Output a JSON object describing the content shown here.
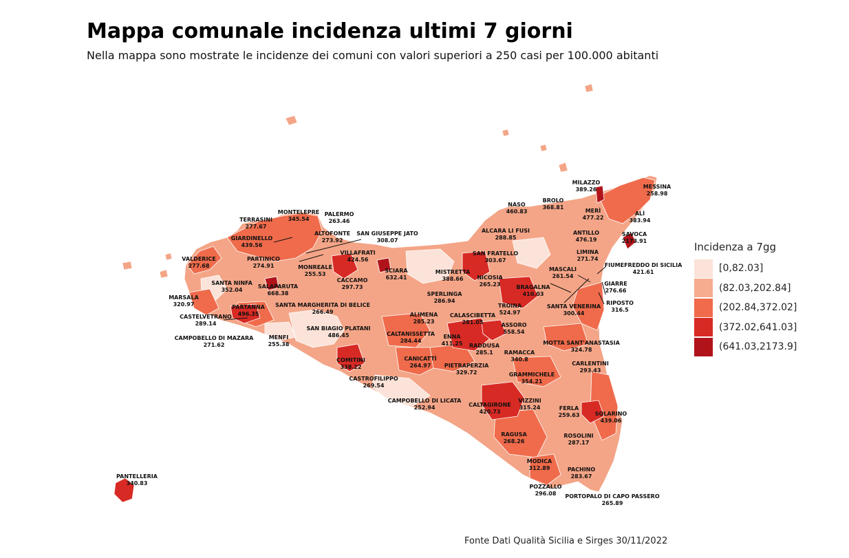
{
  "header": {
    "title": "Mappa comunale incidenza ultimi 7 giorni",
    "subtitle": "Nella mappa sono mostrate le incidenze dei comuni con valori superiori a 250 casi per 100.000 abitanti"
  },
  "legend": {
    "title": "Incidenza a 7gg",
    "classes": [
      {
        "label": "[0,82.03]",
        "color": "#fbe3d9"
      },
      {
        "label": "(82.03,202.84]",
        "color": "#f6ac8e"
      },
      {
        "label": "(202.84,372.02]",
        "color": "#ef6b4b"
      },
      {
        "label": "(372.02,641.03]",
        "color": "#d82a24"
      },
      {
        "label": "(641.03,2173.9]",
        "color": "#b0141a"
      }
    ]
  },
  "source": "Fonte Dati Qualità Sicilia e Sirges 30/11/2022",
  "municipalities": [
    {
      "name": "MILAZZO",
      "value": "389.26"
    },
    {
      "name": "MESSINA",
      "value": "258.98"
    },
    {
      "name": "NASO",
      "value": "460.83"
    },
    {
      "name": "BROLO",
      "value": "368.81"
    },
    {
      "name": "MERÌ",
      "value": "477.22"
    },
    {
      "name": "ALÌ",
      "value": "383.94"
    },
    {
      "name": "ALCARA LI FUSI",
      "value": "288.85"
    },
    {
      "name": "ANTILLO",
      "value": "476.19"
    },
    {
      "name": "SAVOCA",
      "value": "2173.91"
    },
    {
      "name": "LIMINA",
      "value": "271.74"
    },
    {
      "name": "FIUMEFREDDO DI SICILIA",
      "value": "421.61"
    },
    {
      "name": "MASCALI",
      "value": "261.54"
    },
    {
      "name": "GIARRE",
      "value": "276.66"
    },
    {
      "name": "RIPOSTO",
      "value": "316.5"
    },
    {
      "name": "SANTA VENERINA",
      "value": "300.44"
    },
    {
      "name": "BRAGALNA",
      "value": "410.03"
    },
    {
      "name": "TROINA",
      "value": "524.97"
    },
    {
      "name": "SAN FRATELLO",
      "value": "303.67"
    },
    {
      "name": "NICOSIA",
      "value": "265.23"
    },
    {
      "name": "MISTRETTA",
      "value": "388.66"
    },
    {
      "name": "SPERLINGA",
      "value": "286.94"
    },
    {
      "name": "ALIMENA",
      "value": "285.23"
    },
    {
      "name": "CALASCIBETTA",
      "value": "281.05"
    },
    {
      "name": "ASSORO",
      "value": "558.54"
    },
    {
      "name": "ENNA",
      "value": "411.25"
    },
    {
      "name": "RADDUSA",
      "value": "285.1"
    },
    {
      "name": "RAMACCA",
      "value": "340.8"
    },
    {
      "name": "MOTTA SANT'ANASTASIA",
      "value": "324.78"
    },
    {
      "name": "CARLENTINI",
      "value": "293.43"
    },
    {
      "name": "CALTANISSETTA",
      "value": "284.44"
    },
    {
      "name": "CANICATTÌ",
      "value": "264.97"
    },
    {
      "name": "PIETRAPERZIA",
      "value": "329.72"
    },
    {
      "name": "GRAMMICHELE",
      "value": "354.21"
    },
    {
      "name": "VIZZINI",
      "value": "315.24"
    },
    {
      "name": "CALTAGIRONE",
      "value": "420.73"
    },
    {
      "name": "FERLA",
      "value": "259.63"
    },
    {
      "name": "SOLARINO",
      "value": "439.06"
    },
    {
      "name": "RAGUSA",
      "value": "268.26"
    },
    {
      "name": "ROSOLINI",
      "value": "287.17"
    },
    {
      "name": "MODICA",
      "value": "312.89"
    },
    {
      "name": "PACHINO",
      "value": "283.67"
    },
    {
      "name": "POZZALLO",
      "value": "296.08"
    },
    {
      "name": "PORTOPALO DI CAPO PASSERO",
      "value": "265.89"
    },
    {
      "name": "CAMPOBELLO DI LICATA",
      "value": "252.94"
    },
    {
      "name": "CASTROFILIPPO",
      "value": "269.54"
    },
    {
      "name": "COMITINI",
      "value": "338.22"
    },
    {
      "name": "SAN BIAGIO PLATANI",
      "value": "486.45"
    },
    {
      "name": "SANTA MARGHERITA DI BELICE",
      "value": "266.49"
    },
    {
      "name": "MENFI",
      "value": "255.38"
    },
    {
      "name": "CAMPOBELLO DI MAZARA",
      "value": "271.62"
    },
    {
      "name": "CASTELVETRANO",
      "value": "289.14"
    },
    {
      "name": "PARTANNA",
      "value": "496.35"
    },
    {
      "name": "SALAPARUTA",
      "value": "668.38"
    },
    {
      "name": "MARSALA",
      "value": "320.97"
    },
    {
      "name": "SANTA NINFA",
      "value": "352.04"
    },
    {
      "name": "VALDERICE",
      "value": "277.68"
    },
    {
      "name": "PARTINICO",
      "value": "274.91"
    },
    {
      "name": "MONREALE",
      "value": "255.53"
    },
    {
      "name": "CACCAMO",
      "value": "297.73"
    },
    {
      "name": "SCIARA",
      "value": "632.41"
    },
    {
      "name": "VILLAFRATI",
      "value": "424.56"
    },
    {
      "name": "SAN GIUSEPPE JATO",
      "value": "308.07"
    },
    {
      "name": "ALTOFONTE",
      "value": "273.92"
    },
    {
      "name": "PALERMO",
      "value": "263.46"
    },
    {
      "name": "MONTELEPRE",
      "value": "345.54"
    },
    {
      "name": "TERRASINI",
      "value": "277.67"
    },
    {
      "name": "GIARDINELLO",
      "value": "439.56"
    },
    {
      "name": "PANTELLERIA",
      "value": "340.83"
    }
  ]
}
